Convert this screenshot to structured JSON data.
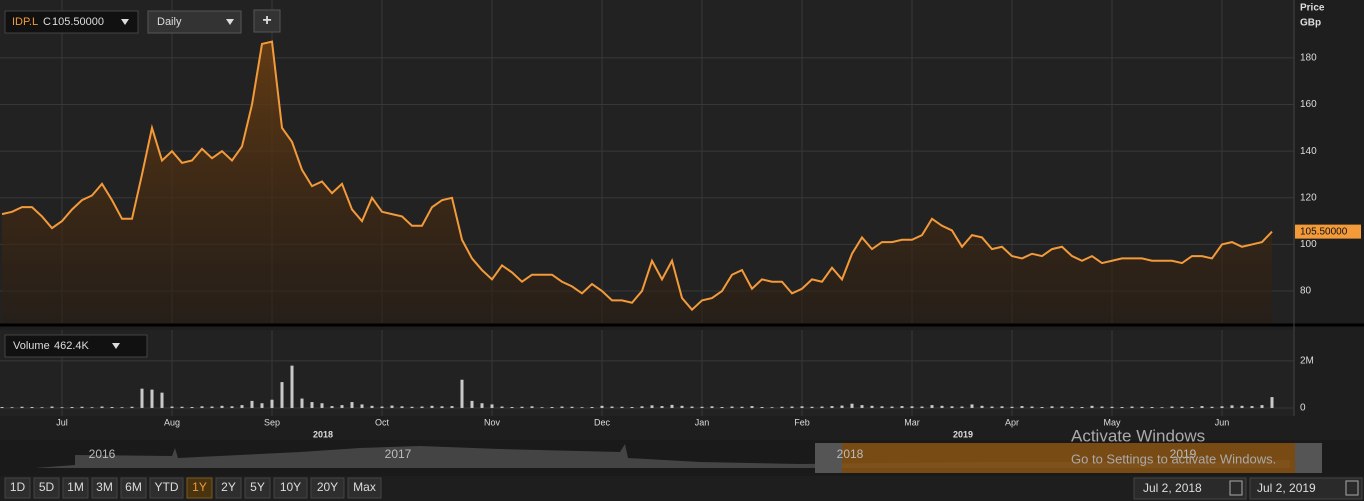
{
  "toolbar": {
    "symbol": "IDP.L",
    "close_prefix": "C",
    "close": "105.50000",
    "interval": "Daily",
    "add": "+"
  },
  "chart_data": [
    {
      "type": "line",
      "axis_title": "Price",
      "unit": "GBp",
      "color": "#f39a3a",
      "grid": true,
      "last_value_label": "105.50000",
      "categories": [
        null,
        null,
        null,
        null,
        null,
        null,
        "Jul",
        null,
        null,
        null,
        null,
        null,
        null,
        null,
        null,
        null,
        null,
        "Aug",
        null,
        null,
        null,
        null,
        null,
        null,
        null,
        null,
        null,
        "Sep",
        null,
        null,
        null,
        null,
        null,
        null,
        null,
        null,
        null,
        null,
        "Oct",
        null,
        null,
        null,
        null,
        null,
        null,
        null,
        null,
        null,
        null,
        "Nov",
        null,
        null,
        null,
        null,
        null,
        null,
        null,
        null,
        null,
        null,
        "Dec",
        null,
        null,
        null,
        null,
        null,
        null,
        null,
        null,
        null,
        "Jan",
        null,
        null,
        null,
        null,
        null,
        null,
        null,
        null,
        null,
        "Feb",
        null,
        null,
        null,
        null,
        null,
        null,
        null,
        null,
        null,
        null,
        "Mar",
        null,
        null,
        null,
        null,
        null,
        null,
        null,
        null,
        null,
        "Apr",
        null,
        null,
        null,
        null,
        null,
        null,
        null,
        null,
        null,
        "May",
        null,
        null,
        null,
        null,
        null,
        null,
        null,
        null,
        null,
        null,
        "Jun",
        null,
        null,
        null,
        null,
        null
      ],
      "values": [
        113,
        114,
        116,
        116,
        112,
        107,
        110,
        115,
        119,
        121,
        126,
        119,
        111,
        111,
        130,
        150,
        136,
        140,
        135,
        136,
        141,
        137,
        140,
        136,
        142,
        160,
        186,
        187,
        150,
        144,
        132,
        125,
        127,
        122,
        126,
        115,
        110,
        120,
        114,
        113,
        112,
        108,
        108,
        116,
        119,
        120,
        102,
        94,
        89,
        85,
        91,
        88,
        84,
        87,
        87,
        87,
        84,
        82,
        79,
        83,
        80,
        76,
        76,
        75,
        80,
        93,
        85,
        93,
        77,
        72,
        76,
        77,
        80,
        87,
        89,
        81,
        85,
        84,
        84,
        79,
        81,
        85,
        84,
        90,
        85,
        96,
        103,
        98,
        101,
        101,
        102,
        102,
        104,
        111,
        108,
        106,
        99,
        104,
        103,
        98,
        99,
        95,
        94,
        96,
        95,
        98,
        99,
        95,
        93,
        95,
        92,
        93,
        94,
        94,
        94,
        93,
        93,
        93,
        92,
        95,
        95,
        94,
        100,
        101,
        99,
        100,
        101,
        105.5
      ],
      "ylim": [
        66.3,
        202.7
      ],
      "yticks": [
        80,
        100,
        120,
        140,
        160,
        180
      ]
    },
    {
      "type": "bar",
      "title": "Volume",
      "last_value_label": "462.4K",
      "color": "#c9c9c9",
      "values": [
        40000,
        30000,
        50000,
        40000,
        30000,
        60000,
        30000,
        40000,
        50000,
        30000,
        60000,
        40000,
        30000,
        50000,
        820000,
        780000,
        650000,
        60000,
        50000,
        40000,
        70000,
        60000,
        90000,
        70000,
        120000,
        300000,
        200000,
        350000,
        1100000,
        1800000,
        400000,
        250000,
        200000,
        80000,
        120000,
        250000,
        150000,
        90000,
        60000,
        100000,
        70000,
        50000,
        60000,
        90000,
        70000,
        80000,
        1200000,
        300000,
        200000,
        150000,
        60000,
        40000,
        50000,
        70000,
        30000,
        40000,
        60000,
        50000,
        30000,
        40000,
        90000,
        60000,
        50000,
        40000,
        70000,
        110000,
        80000,
        130000,
        90000,
        60000,
        50000,
        70000,
        40000,
        60000,
        50000,
        80000,
        40000,
        30000,
        50000,
        60000,
        70000,
        50000,
        60000,
        80000,
        100000,
        180000,
        120000,
        90000,
        70000,
        60000,
        80000,
        70000,
        60000,
        120000,
        90000,
        70000,
        60000,
        150000,
        90000,
        60000,
        70000,
        50000,
        80000,
        60000,
        40000,
        70000,
        60000,
        50000,
        40000,
        90000,
        60000,
        50000,
        40000,
        60000,
        50000,
        40000,
        30000,
        60000,
        50000,
        40000,
        80000,
        50000,
        70000,
        110000,
        90000,
        80000,
        120000,
        462400
      ],
      "ylim": [
        -300000,
        3060000
      ],
      "yticks": [
        0,
        {
          "value": 2000000,
          "label": "2M"
        }
      ]
    }
  ],
  "x_axis_years": [
    "2018",
    "2019"
  ],
  "navigator_years": [
    "2016",
    "2017",
    "2018",
    "2019"
  ],
  "range_buttons": [
    "1D",
    "5D",
    "1M",
    "3M",
    "6M",
    "YTD",
    "1Y",
    "2Y",
    "5Y",
    "10Y",
    "20Y",
    "Max"
  ],
  "date_range": {
    "from": "Jul 2, 2018",
    "to": "Jul 2, 2019"
  },
  "watermark": {
    "title": "Activate Windows",
    "text": "Go to Settings to activate Windows."
  }
}
